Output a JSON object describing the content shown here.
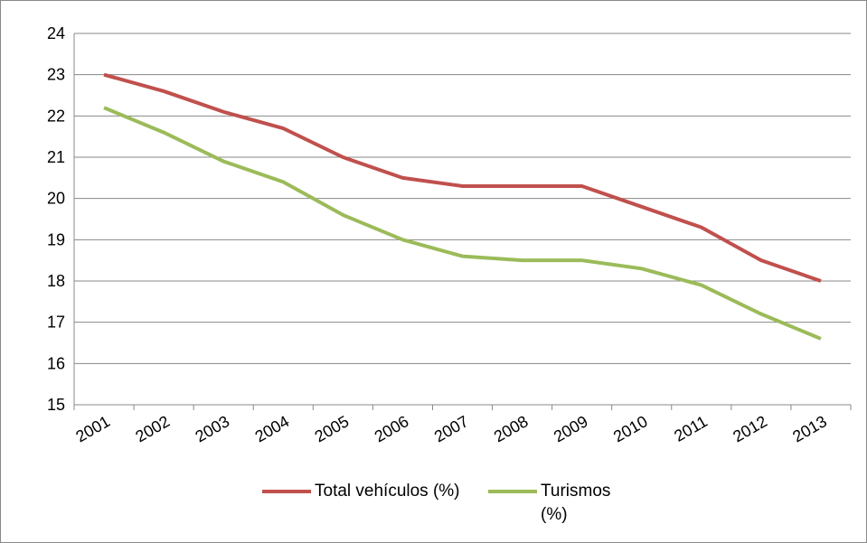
{
  "chart_data": {
    "type": "line",
    "categories": [
      "2001",
      "2002",
      "2003",
      "2004",
      "2005",
      "2006",
      "2007",
      "2008",
      "2009",
      "2010",
      "2011",
      "2012",
      "2013"
    ],
    "series": [
      {
        "name": "Total vehículos (%)",
        "color": "#c0504d",
        "values": [
          23.0,
          22.6,
          22.1,
          21.7,
          21.0,
          20.5,
          20.3,
          20.3,
          20.3,
          19.8,
          19.3,
          18.5,
          18.0
        ]
      },
      {
        "name": "Turismos (%)",
        "color": "#9bbb59",
        "values": [
          22.2,
          21.6,
          20.9,
          20.4,
          19.6,
          19.0,
          18.6,
          18.5,
          18.5,
          18.3,
          17.9,
          17.2,
          16.6
        ]
      }
    ],
    "ylim": [
      15,
      24
    ],
    "yticks": [
      15,
      16,
      17,
      18,
      19,
      20,
      21,
      22,
      23,
      24
    ],
    "grid": true,
    "legend": "bottom"
  }
}
